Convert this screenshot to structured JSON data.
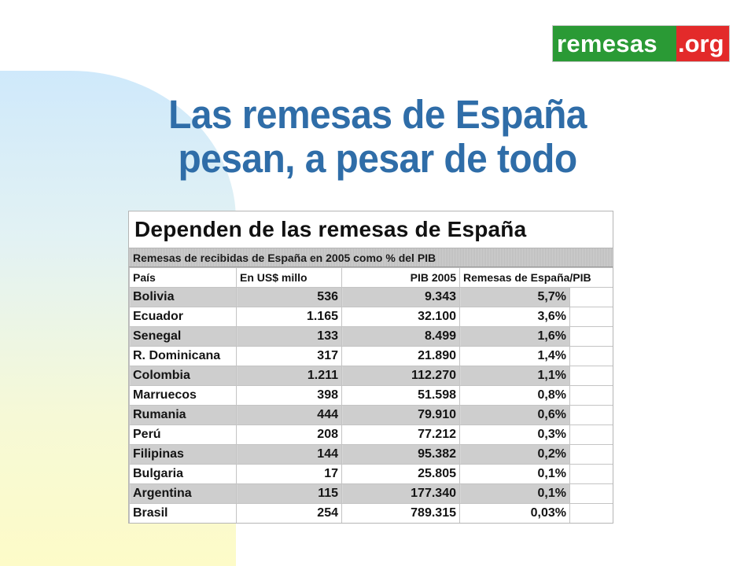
{
  "logo": {
    "part1": "remesas",
    "part2": ".org"
  },
  "title": {
    "line1": "Las remesas de España",
    "line2": "pesan, a pesar de todo"
  },
  "table": {
    "heading": "Dependen de las remesas de España",
    "subtitle": "Remesas de recibidas de España en 2005 como % del PIB",
    "columns": [
      "País",
      "En US$ millo",
      "PIB 2005",
      "Remesas de España/PIB"
    ],
    "rows": [
      {
        "pais": "Bolivia",
        "usd": "536",
        "pib": "9.343",
        "pct": "5,7%"
      },
      {
        "pais": "Ecuador",
        "usd": "1.165",
        "pib": "32.100",
        "pct": "3,6%"
      },
      {
        "pais": "Senegal",
        "usd": "133",
        "pib": "8.499",
        "pct": "1,6%"
      },
      {
        "pais": "R. Dominicana",
        "usd": "317",
        "pib": "21.890",
        "pct": "1,4%"
      },
      {
        "pais": "Colombia",
        "usd": "1.211",
        "pib": "112.270",
        "pct": "1,1%"
      },
      {
        "pais": "Marruecos",
        "usd": "398",
        "pib": "51.598",
        "pct": "0,8%"
      },
      {
        "pais": "Rumania",
        "usd": "444",
        "pib": "79.910",
        "pct": "0,6%"
      },
      {
        "pais": "Perú",
        "usd": "208",
        "pib": "77.212",
        "pct": "0,3%"
      },
      {
        "pais": "Filipinas",
        "usd": "144",
        "pib": "95.382",
        "pct": "0,2%"
      },
      {
        "pais": "Bulgaria",
        "usd": "17",
        "pib": "25.805",
        "pct": "0,1%"
      },
      {
        "pais": "Argentina",
        "usd": "115",
        "pib": "177.340",
        "pct": "0,1%"
      },
      {
        "pais": "Brasil",
        "usd": "254",
        "pib": "789.315",
        "pct": "0,03%"
      }
    ]
  },
  "colors": {
    "title": "#2f6da8",
    "logo_green": "#2a9a35",
    "logo_red": "#e32a2a"
  }
}
